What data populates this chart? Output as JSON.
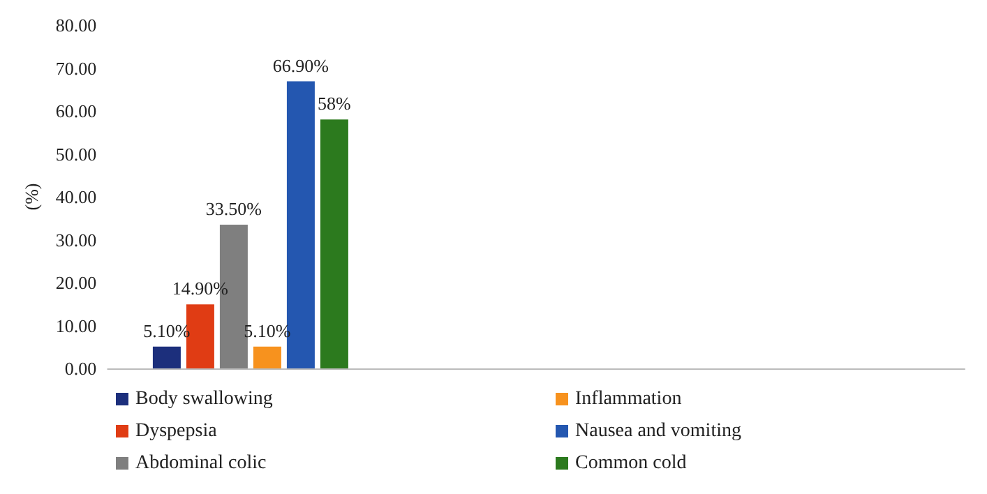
{
  "chart_data": {
    "type": "bar",
    "ylabel": "(%)",
    "categories": [
      null,
      null,
      null
    ],
    "series": [
      {
        "name": "Body swallowing",
        "color": "#1c2f7c",
        "values": [
          5.1,
          null,
          null
        ],
        "value_labels": [
          "5.10%",
          null,
          null
        ]
      },
      {
        "name": "Dyspepsia",
        "color": "#e03c14",
        "values": [
          14.9,
          null,
          null
        ],
        "value_labels": [
          "14.90%",
          null,
          null
        ]
      },
      {
        "name": "Abdominal colic",
        "color": "#7f7f7f",
        "values": [
          33.5,
          null,
          null
        ],
        "value_labels": [
          "33.50%",
          null,
          null
        ]
      },
      {
        "name": "Inflammation",
        "color": "#f7921e",
        "values": [
          5.1,
          null,
          null
        ],
        "value_labels": [
          "5.10%",
          null,
          null
        ]
      },
      {
        "name": "Nausea and vomiting",
        "color": "#2457b0",
        "values": [
          66.9,
          null,
          null
        ],
        "value_labels": [
          "66.90%",
          null,
          null
        ]
      },
      {
        "name": "Common cold",
        "color": "#2c7a1e",
        "values": [
          58,
          null,
          null
        ],
        "value_labels": [
          "58%",
          null,
          null
        ]
      }
    ],
    "ylim": [
      0,
      80
    ],
    "yticks": [
      {
        "value": 0,
        "label": "0.00"
      },
      {
        "value": 10,
        "label": "10.00"
      },
      {
        "value": 20,
        "label": "20.00"
      },
      {
        "value": 30,
        "label": "30.00"
      },
      {
        "value": 40,
        "label": "40.00"
      },
      {
        "value": 50,
        "label": "50.00"
      },
      {
        "value": 60,
        "label": "60.00"
      },
      {
        "value": 70,
        "label": "70.00"
      },
      {
        "value": 80,
        "label": "80.00"
      }
    ],
    "grid": false,
    "legend": "bottom"
  }
}
